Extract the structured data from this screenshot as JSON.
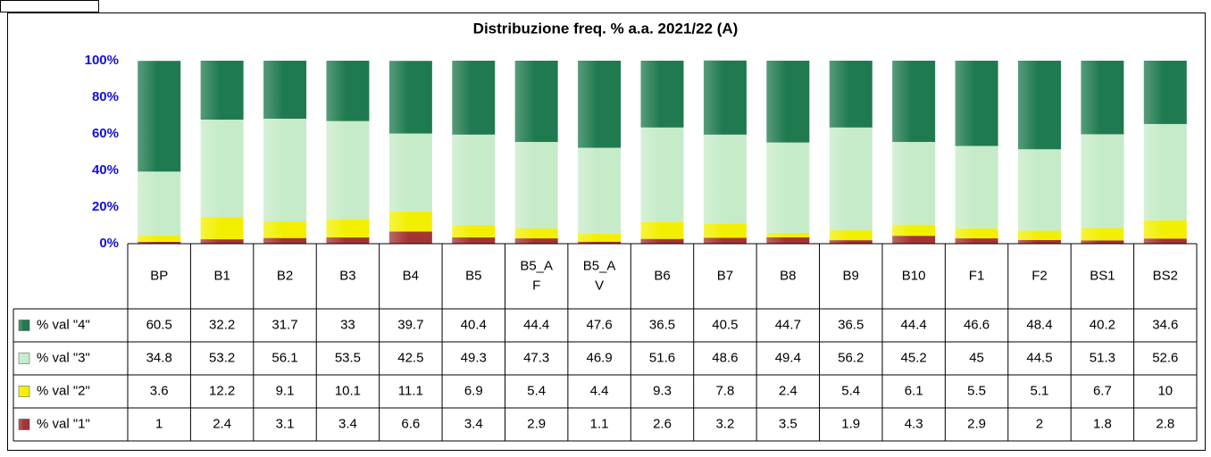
{
  "chart_data": {
    "type": "bar",
    "stacked": true,
    "title": "Distribuzione freq. % a.a. 2021/22 (A)",
    "categories": [
      "BP",
      "B1",
      "B2",
      "B3",
      "B4",
      "B5",
      "B5_AF",
      "B5_AV",
      "B6",
      "B7",
      "B8",
      "B9",
      "B10",
      "F1",
      "F2",
      "BS1",
      "BS2"
    ],
    "series": [
      {
        "name": "% val \"4\"",
        "color": "#1f7a4f",
        "values": [
          60.5,
          32.2,
          31.7,
          33,
          39.7,
          40.4,
          44.4,
          47.6,
          36.5,
          40.5,
          44.7,
          36.5,
          44.4,
          46.6,
          48.4,
          40.2,
          34.6
        ]
      },
      {
        "name": "% val \"3\"",
        "color": "#c6ebc8",
        "values": [
          34.8,
          53.2,
          56.1,
          53.5,
          42.5,
          49.3,
          47.3,
          46.9,
          51.6,
          48.6,
          49.4,
          56.2,
          45.2,
          45,
          44.5,
          51.3,
          52.6
        ]
      },
      {
        "name": "% val \"2\"",
        "color": "#f2f000",
        "values": [
          3.6,
          12.2,
          9.1,
          10.1,
          11.1,
          6.9,
          5.4,
          4.4,
          9.3,
          7.8,
          2.4,
          5.4,
          6.1,
          5.5,
          5.1,
          6.7,
          10
        ]
      },
      {
        "name": "% val \"1\"",
        "color": "#a33434",
        "values": [
          1,
          2.4,
          3.1,
          3.4,
          6.6,
          3.4,
          2.9,
          1.1,
          2.6,
          3.2,
          3.5,
          1.9,
          4.3,
          2.9,
          2,
          1.8,
          2.8
        ]
      }
    ],
    "ylim": [
      0,
      100
    ],
    "yticks": [
      {
        "value": 0,
        "label": "0%"
      },
      {
        "value": 20,
        "label": "20%"
      },
      {
        "value": 40,
        "label": "40%"
      },
      {
        "value": 60,
        "label": "60%"
      },
      {
        "value": 80,
        "label": "80%"
      },
      {
        "value": 100,
        "label": "100%"
      }
    ],
    "grid": false
  }
}
